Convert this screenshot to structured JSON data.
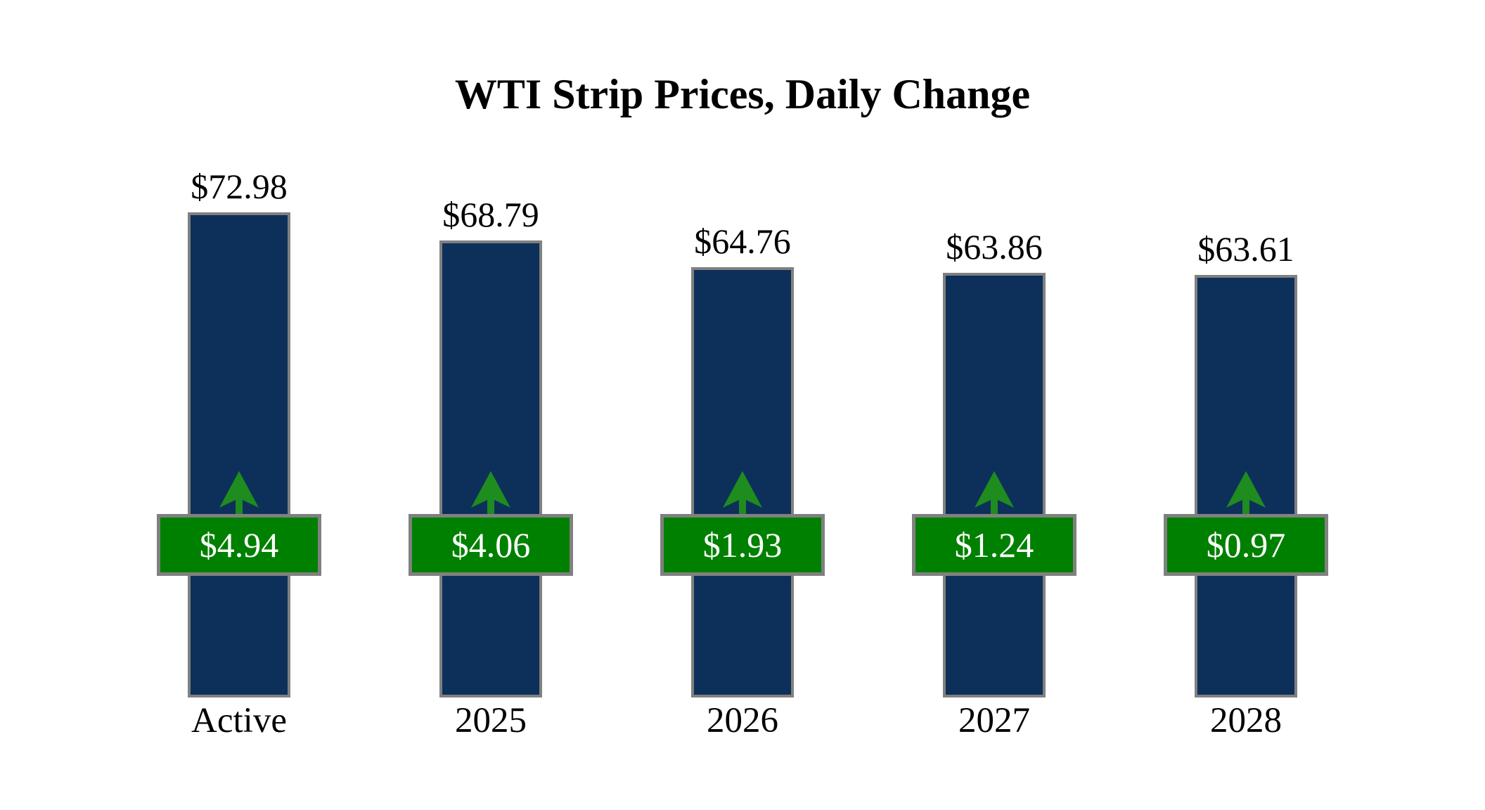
{
  "chart_data": {
    "type": "bar",
    "title": "WTI Strip Prices, Daily Change",
    "categories": [
      "Active",
      "2025",
      "2026",
      "2027",
      "2028"
    ],
    "series": [
      {
        "name": "Strip Price",
        "values": [
          72.98,
          68.79,
          64.76,
          63.86,
          63.61
        ]
      },
      {
        "name": "Daily Change",
        "values": [
          4.94,
          4.06,
          1.93,
          1.24,
          0.97
        ]
      }
    ],
    "bars": [
      {
        "category": "Active",
        "price": 72.98,
        "price_label": "$72.98",
        "change": 4.94,
        "change_label": "$4.94",
        "direction": "up"
      },
      {
        "category": "2025",
        "price": 68.79,
        "price_label": "$68.79",
        "change": 4.06,
        "change_label": "$4.06",
        "direction": "up"
      },
      {
        "category": "2026",
        "price": 64.76,
        "price_label": "$64.76",
        "change": 1.93,
        "change_label": "$1.93",
        "direction": "up"
      },
      {
        "category": "2027",
        "price": 63.86,
        "price_label": "$63.86",
        "change": 1.24,
        "change_label": "$1.24",
        "direction": "up"
      },
      {
        "category": "2028",
        "price": 63.61,
        "price_label": "$63.61",
        "change": 0.97,
        "change_label": "$0.97",
        "direction": "up"
      }
    ],
    "ylim": [
      0,
      72.98
    ],
    "axis": {
      "gridlines": false,
      "y_axis_visible": false
    },
    "legend": {
      "visible": false
    },
    "colors": {
      "background": "#ffffff",
      "bar_fill": "#0d305a",
      "bar_border": "#808080",
      "badge_fill": "#008000",
      "badge_border": "#808080",
      "badge_text": "#ffffff",
      "arrow": "#1e8c1e",
      "title_text": "#000000",
      "label_text": "#000000"
    }
  }
}
